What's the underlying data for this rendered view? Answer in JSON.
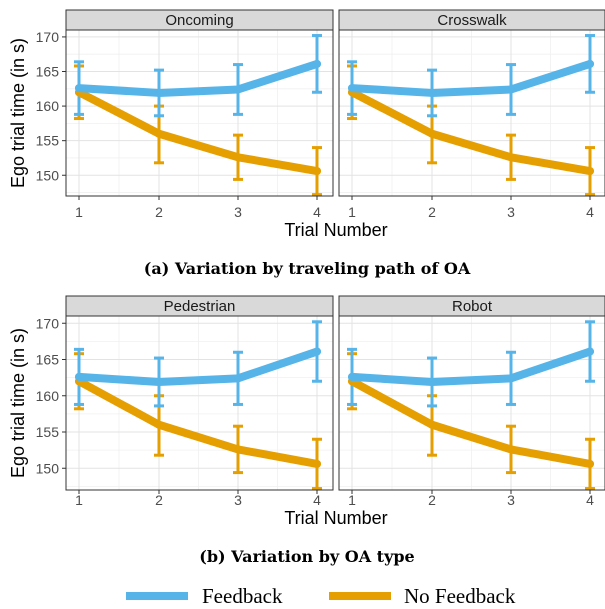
{
  "legend": {
    "items": [
      {
        "label": "Feedback",
        "color": "#56B4E9"
      },
      {
        "label": "No Feedback",
        "color": "#E69F00"
      }
    ]
  },
  "chart_data": [
    {
      "type": "line",
      "caption": "(a) Variation by traveling path of OA",
      "xlabel": "Trial Number",
      "ylabel": "Ego trial time (in s)",
      "x": [
        1,
        2,
        3,
        4
      ],
      "xticks": [
        "1",
        "2",
        "3",
        "4"
      ],
      "yticks": [
        "150",
        "155",
        "160",
        "165",
        "170"
      ],
      "ylim": [
        147,
        171
      ],
      "grid": true,
      "error_bars": true,
      "panels": [
        {
          "title": "Oncoming",
          "series": [
            {
              "name": "Feedback",
              "values": [
                162.6,
                161.9,
                162.4,
                166.1
              ],
              "err_low": [
                158.8,
                158.6,
                158.8,
                162.0
              ],
              "err_high": [
                166.4,
                165.2,
                166.0,
                170.2
              ]
            },
            {
              "name": "No Feedback",
              "values": [
                162.0,
                156.0,
                152.6,
                150.6
              ],
              "err_low": [
                158.2,
                151.8,
                149.4,
                147.2
              ],
              "err_high": [
                165.8,
                160.0,
                155.8,
                154.0
              ]
            }
          ]
        },
        {
          "title": "Crosswalk",
          "series": [
            {
              "name": "Feedback",
              "values": [
                162.6,
                161.9,
                162.4,
                166.1
              ],
              "err_low": [
                158.8,
                158.6,
                158.8,
                162.0
              ],
              "err_high": [
                166.4,
                165.2,
                166.0,
                170.2
              ]
            },
            {
              "name": "No Feedback",
              "values": [
                162.0,
                156.0,
                152.6,
                150.6
              ],
              "err_low": [
                158.2,
                151.8,
                149.4,
                147.2
              ],
              "err_high": [
                165.8,
                160.0,
                155.8,
                154.0
              ]
            }
          ]
        }
      ]
    },
    {
      "type": "line",
      "caption": "(b) Variation by OA type",
      "xlabel": "Trial Number",
      "ylabel": "Ego trial time (in s)",
      "x": [
        1,
        2,
        3,
        4
      ],
      "xticks": [
        "1",
        "2",
        "3",
        "4"
      ],
      "yticks": [
        "150",
        "155",
        "160",
        "165",
        "170"
      ],
      "ylim": [
        147,
        171
      ],
      "grid": true,
      "error_bars": true,
      "panels": [
        {
          "title": "Pedestrian",
          "series": [
            {
              "name": "Feedback",
              "values": [
                162.6,
                161.9,
                162.4,
                166.1
              ],
              "err_low": [
                158.8,
                158.6,
                158.8,
                162.0
              ],
              "err_high": [
                166.4,
                165.2,
                166.0,
                170.2
              ]
            },
            {
              "name": "No Feedback",
              "values": [
                162.0,
                156.0,
                152.6,
                150.6
              ],
              "err_low": [
                158.2,
                151.8,
                149.4,
                147.2
              ],
              "err_high": [
                165.8,
                160.0,
                155.8,
                154.0
              ]
            }
          ]
        },
        {
          "title": "Robot",
          "series": [
            {
              "name": "Feedback",
              "values": [
                162.6,
                161.9,
                162.4,
                166.1
              ],
              "err_low": [
                158.8,
                158.6,
                158.8,
                162.0
              ],
              "err_high": [
                166.4,
                165.2,
                166.0,
                170.2
              ]
            },
            {
              "name": "No Feedback",
              "values": [
                162.0,
                156.0,
                152.6,
                150.6
              ],
              "err_low": [
                158.2,
                151.8,
                149.4,
                147.2
              ],
              "err_high": [
                165.8,
                160.0,
                155.8,
                154.0
              ]
            }
          ]
        }
      ]
    }
  ]
}
